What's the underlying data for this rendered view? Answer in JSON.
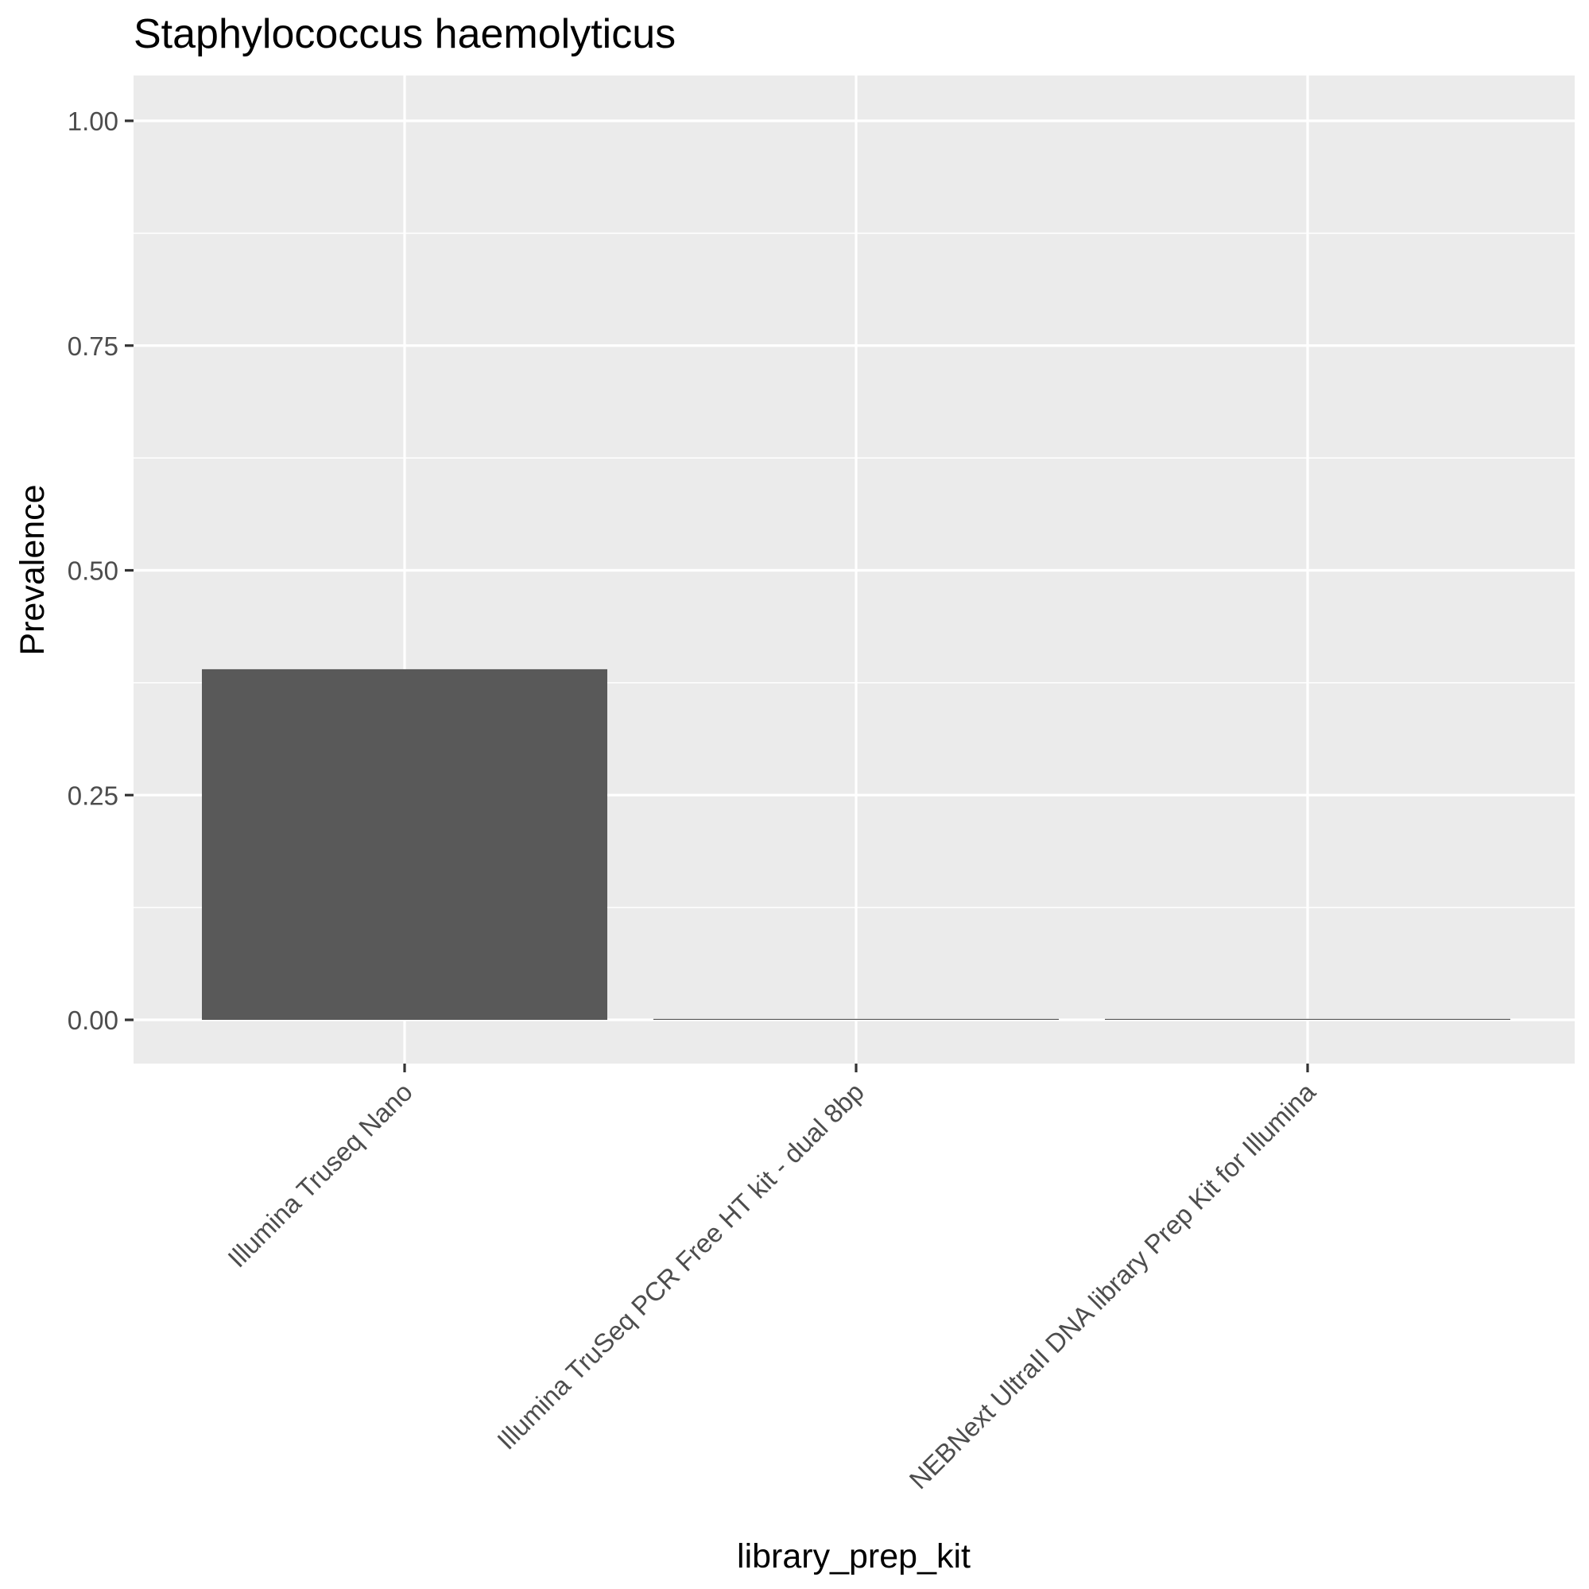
{
  "chart_data": {
    "type": "bar",
    "title": "Staphylococcus haemolyticus",
    "xlabel": "library_prep_kit",
    "ylabel": "Prevalence",
    "categories": [
      "Illumina Truseq Nano",
      "Illumina TruSeq PCR Free HT kit - dual 8bp",
      "NEBNext UltraII DNA library Prep Kit for Illumina"
    ],
    "values": [
      0.39,
      0.0,
      0.0
    ],
    "ylim": [
      0,
      1
    ],
    "yticks": [
      "0.00",
      "0.25",
      "0.50",
      "0.75",
      "1.00"
    ],
    "grid": true,
    "legend": "none",
    "colors": {
      "bar": "#595959",
      "panel": "#ebebeb",
      "grid": "#ffffff"
    }
  }
}
